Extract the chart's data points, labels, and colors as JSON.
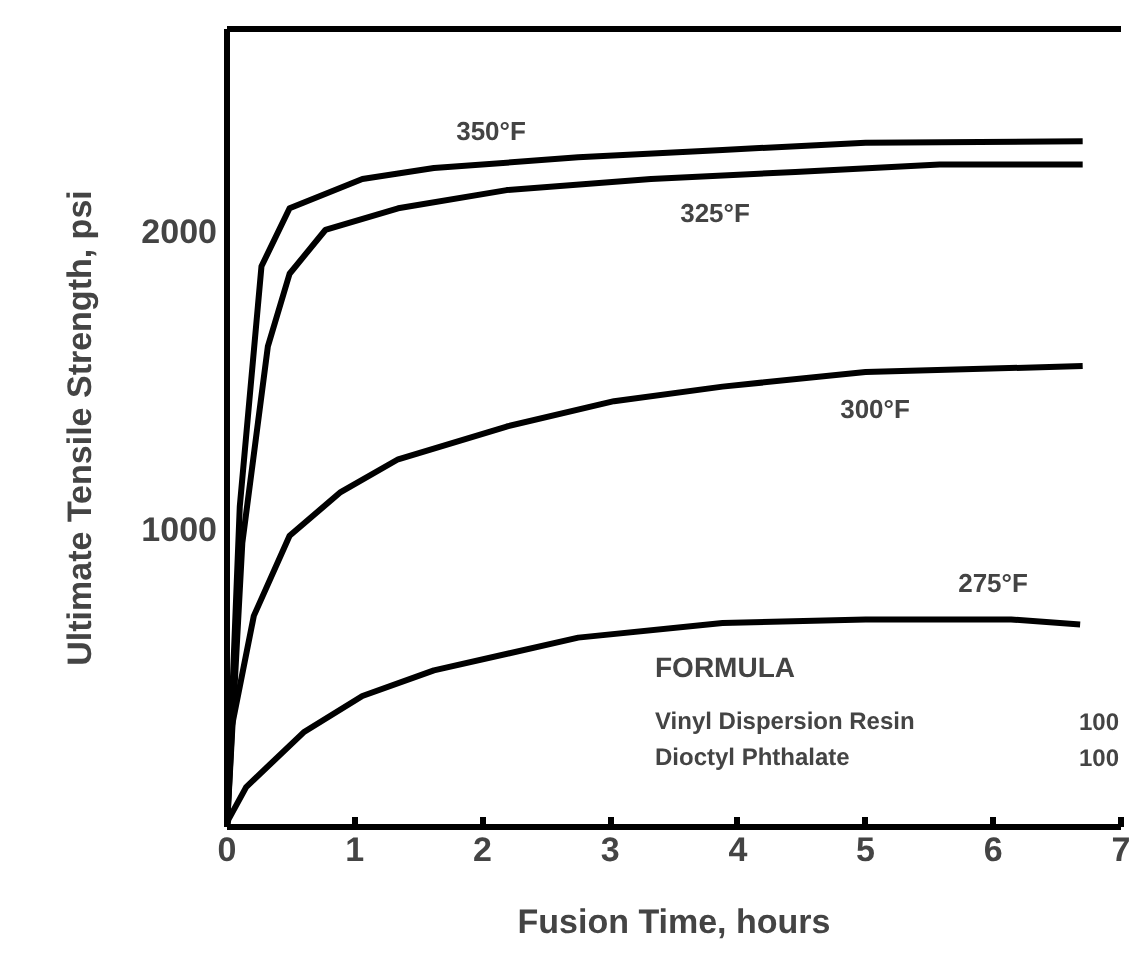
{
  "chart_data": {
    "type": "line",
    "xlabel": "Fusion Time, hours",
    "ylabel": "Ultimate Tensile Strength, psi",
    "xlim": [
      0,
      7
    ],
    "ylim": [
      0,
      2680
    ],
    "xticks": [
      0,
      1,
      2,
      3,
      4,
      5,
      6,
      7
    ],
    "yticks": [
      1000,
      2000
    ],
    "grid": false,
    "marker": "none",
    "line_style": "solid",
    "series": [
      {
        "color": "#000000",
        "x": [
          0,
          0.1,
          0.27,
          0.49,
          1.06,
          1.62,
          2.75,
          3.88,
          5.0,
          6.7
        ],
        "values": [
          0,
          1076,
          1883,
          2078,
          2176,
          2213,
          2249,
          2274,
          2298,
          2303
        ]
      },
      {
        "color": "#000000",
        "x": [
          0,
          0.12,
          0.32,
          0.49,
          0.77,
          1.34,
          2.19,
          3.32,
          4.45,
          5.58,
          6.7
        ],
        "values": [
          0,
          954,
          1614,
          1858,
          2005,
          2078,
          2139,
          2176,
          2200,
          2225,
          2225
        ]
      },
      {
        "color": "#000000",
        "x": [
          0,
          0.04,
          0.21,
          0.49,
          0.89,
          1.34,
          2.19,
          3.03,
          3.88,
          5.0,
          6.7
        ],
        "values": [
          0,
          342,
          709,
          978,
          1125,
          1235,
          1345,
          1430,
          1479,
          1528,
          1548
        ]
      },
      {
        "color": "#000000",
        "x": [
          0,
          0.01,
          0.15,
          0.6,
          1.06,
          1.62,
          2.75,
          3.88,
          5.0,
          6.14,
          6.68
        ],
        "values": [
          0,
          24,
          134,
          318,
          440,
          526,
          636,
          685,
          697,
          697,
          680
        ]
      }
    ],
    "annotations": [
      "350°F",
      "325°F",
      "300°F",
      "275°F",
      "FORMULA",
      "Vinyl Dispersion Resin",
      "100",
      "Dioctyl Phthalate",
      "100"
    ]
  }
}
